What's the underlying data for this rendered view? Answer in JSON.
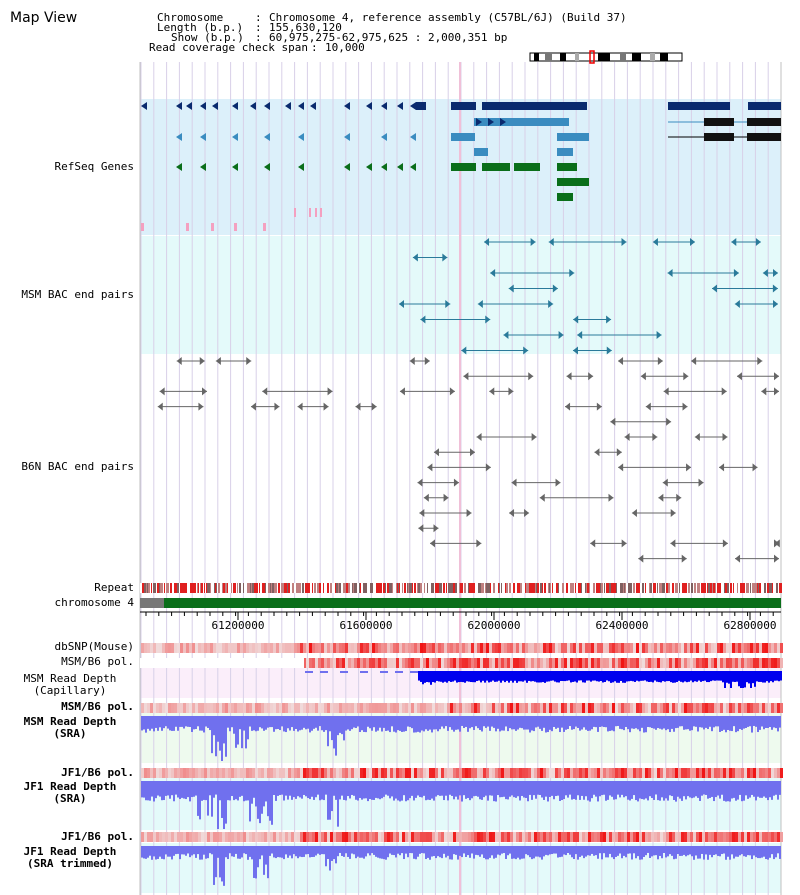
{
  "app": {
    "title": "Map View"
  },
  "info": {
    "chromosome_key": "Chromosome",
    "chromosome_val": "Chromosome 4, reference assembly (C57BL/6J) (Build 37)",
    "length_key": "Length (b.p.)",
    "length_val": "155,630,120",
    "show_key": "Show (b.p.)",
    "show_val": "60,975,275-62,975,625 : 2,000,351 bp",
    "coverage_key": "Read coverage check span",
    "coverage_val": "10,000"
  },
  "tracks": {
    "refseq": "RefSeq Genes",
    "msm_bac": "MSM BAC end pairs",
    "b6n_bac": "B6N BAC end pairs",
    "repeat": "Repeat",
    "chromosome": "chromosome 4",
    "dbsnp": "dbSNP(Mouse)",
    "msm_b6_pol_1": "MSM/B6 pol.",
    "msm_depth_cap_1": "MSM Read Depth",
    "msm_depth_cap_2": "(Capillary)",
    "msm_b6_pol_2": "MSM/B6 pol.",
    "msm_depth_sra_1": "MSM Read Depth",
    "msm_depth_sra_2": "(SRA)",
    "jf1_b6_pol_1": "JF1/B6 pol.",
    "jf1_depth_sra_1": "JF1 Read Depth",
    "jf1_depth_sra_2": "(SRA)",
    "jf1_b6_pol_2": "JF1/B6 pol.",
    "jf1_depth_trim_1": "JF1 Read Depth",
    "jf1_depth_trim_2": "(SRA trimmed)"
  },
  "scale": {
    "ticks": [
      "61200000",
      "61600000",
      "62000000",
      "62400000",
      "62800000"
    ]
  },
  "colors": {
    "refseq_bg": "#dcf0fa",
    "msm_bac_bg": "#e4fafa",
    "grid": "#d8d0e8",
    "gene_dark": "#0a2a6e",
    "gene_mid": "#3a8cc0",
    "gene_green": "#0a6e1a",
    "bac_msm": "#2a7a9a",
    "bac_b6n": "#666666",
    "chrom_green": "#0a6e1a",
    "depth_blue": "#0000ee",
    "depth_light": "#7070ee",
    "label_blue": "#1a1a8a",
    "label_orange": "#e0a000",
    "label_teal": "#005a8a"
  }
}
